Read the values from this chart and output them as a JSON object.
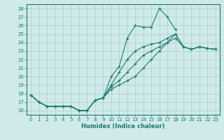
{
  "xlabel": "Humidex (Indice chaleur)",
  "bg_color": "#d0eaea",
  "grid_color": "#a8cccc",
  "line_color": "#1a7a6e",
  "xlim": [
    -0.5,
    23.5
  ],
  "ylim": [
    15.5,
    28.5
  ],
  "xticks": [
    0,
    1,
    2,
    3,
    4,
    5,
    6,
    7,
    8,
    9,
    10,
    11,
    12,
    13,
    14,
    15,
    16,
    17,
    18,
    19,
    20,
    21,
    22,
    23
  ],
  "yticks": [
    16,
    17,
    18,
    19,
    20,
    21,
    22,
    23,
    24,
    25,
    26,
    27,
    28
  ],
  "series": [
    [
      17.8,
      17.0,
      16.5,
      16.5,
      16.5,
      16.5,
      16.0,
      16.0,
      17.2,
      17.5,
      20.0,
      21.2,
      24.5,
      26.0,
      25.8,
      25.8,
      28.0,
      27.0,
      25.5,
      null,
      null,
      null,
      null,
      null
    ],
    [
      17.8,
      17.0,
      16.5,
      16.5,
      16.5,
      16.5,
      16.0,
      16.0,
      17.2,
      17.5,
      18.5,
      19.0,
      19.5,
      20.0,
      21.0,
      22.0,
      23.0,
      24.0,
      25.0,
      23.5,
      23.2,
      23.5,
      23.3,
      23.2
    ],
    [
      17.8,
      17.0,
      16.5,
      16.5,
      16.5,
      16.5,
      16.0,
      16.0,
      17.2,
      17.5,
      18.8,
      19.5,
      20.5,
      21.5,
      22.5,
      23.0,
      23.5,
      24.0,
      24.5,
      23.5,
      23.2,
      23.5,
      23.3,
      23.2
    ],
    [
      17.8,
      17.0,
      16.5,
      16.5,
      16.5,
      16.5,
      16.0,
      16.0,
      17.2,
      17.5,
      19.0,
      20.5,
      22.0,
      23.0,
      23.5,
      23.8,
      24.0,
      24.5,
      25.0,
      23.5,
      23.2,
      23.5,
      23.3,
      23.2
    ]
  ]
}
